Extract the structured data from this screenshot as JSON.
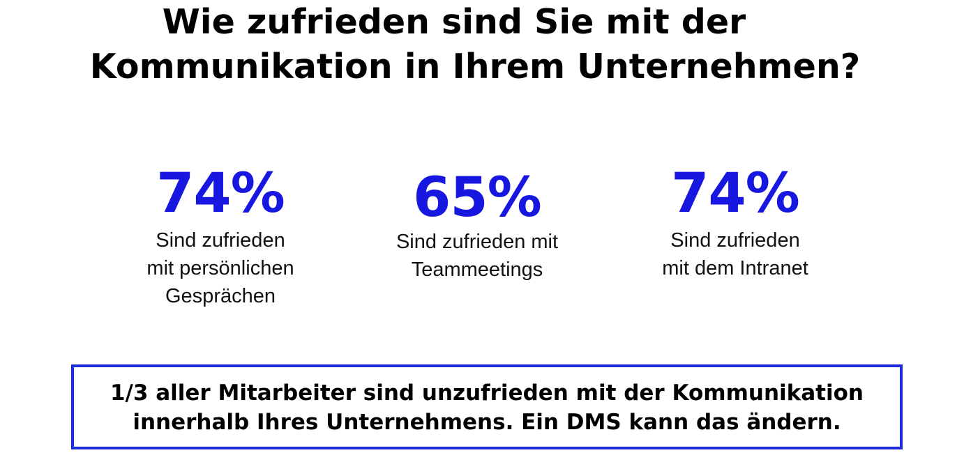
{
  "colors": {
    "accent": "#1717e0",
    "border": "#1f2bd6",
    "text": "#000000"
  },
  "title": {
    "line1": "Wie zufrieden sind Sie mit der",
    "line2": "Kommunikation in Ihrem Unternehmen?"
  },
  "stats": [
    {
      "value": "74%",
      "label_lines": [
        "Sind zufrieden",
        "mit persönlichen",
        "Gesprächen"
      ]
    },
    {
      "value": "65%",
      "label_lines": [
        "Sind zufrieden mit",
        "Teammeetings"
      ]
    },
    {
      "value": "74%",
      "label_lines": [
        "Sind zufrieden",
        "mit dem Intranet"
      ]
    }
  ],
  "callout": {
    "line1": "1/3 aller Mitarbeiter sind unzufrieden mit der Kommunikation",
    "line2": "innerhalb Ihres Unternehmens. Ein DMS kann das ändern."
  }
}
